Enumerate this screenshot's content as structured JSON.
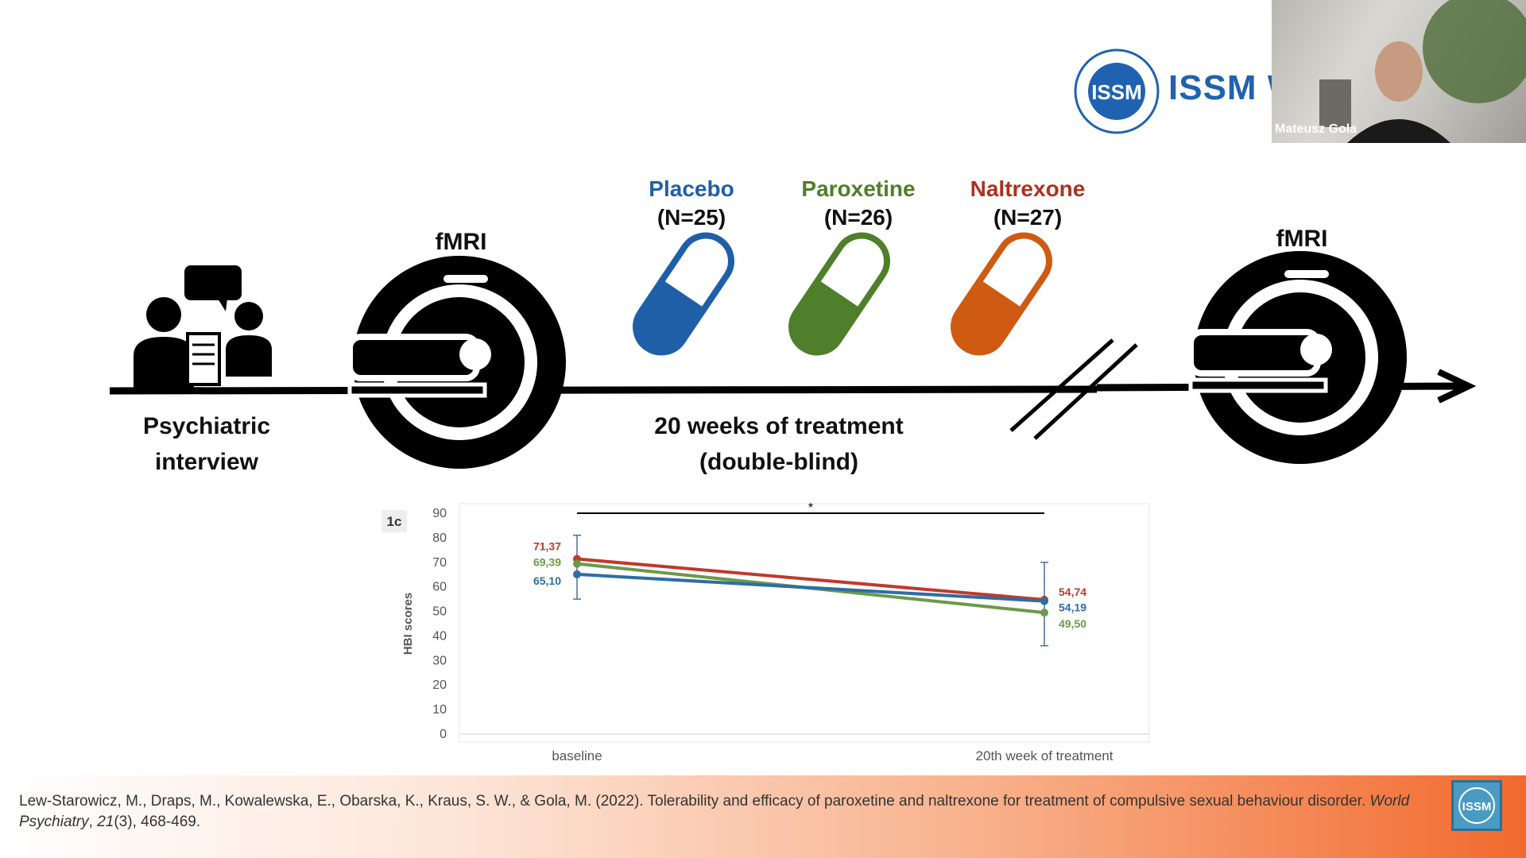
{
  "header": {
    "brand_text": "ISSM W"
  },
  "webcam": {
    "participant_name": "Mateusz Gola"
  },
  "timeline": {
    "interview_label_line1": "Psychiatric",
    "interview_label_line2": "interview",
    "fmri_left": "fMRI",
    "fmri_right": "fMRI",
    "treatment_line1": "20 weeks of treatment",
    "treatment_line2": "(double-blind)",
    "drugs": [
      {
        "name": "Placebo",
        "n": "(N=25)",
        "color": "#1f5fa8"
      },
      {
        "name": "Paroxetine",
        "n": "(N=26)",
        "color": "#4f7f2a"
      },
      {
        "name": "Naltrexone",
        "n": "(N=27)",
        "color": "#b0301e"
      }
    ]
  },
  "chart_data": {
    "type": "line",
    "panel_label": "1c",
    "ylabel": "HBI scores",
    "categories": [
      "baseline",
      "20th week of treatment"
    ],
    "ylim": [
      0,
      90
    ],
    "yticks": [
      "0",
      "10",
      "20",
      "30",
      "40",
      "50",
      "60",
      "70",
      "80",
      "90"
    ],
    "significance_marker": "*",
    "series": [
      {
        "color": "#c0392b",
        "values": [
          71.37,
          54.74
        ],
        "labels": [
          "71,37",
          "54,74"
        ]
      },
      {
        "color": "#6a9a4a",
        "values": [
          69.39,
          49.5
        ],
        "labels": [
          "69,39",
          "49,50"
        ]
      },
      {
        "color": "#2e6da4",
        "values": [
          65.1,
          54.19
        ],
        "labels": [
          "65,10",
          "54,19"
        ]
      }
    ],
    "grid": false
  },
  "footer": {
    "citation_main": "Lew-Starowicz, M., Draps, M., Kowalewska, E., Obarska, K., Kraus, S. W., & Gola, M. (2022). Tolerability and efficacy of paroxetine and naltrexone for treatment of compulsive sexual behaviour disorder. ",
    "journal": "World Psychiatry",
    "comma": ", ",
    "volume": "21",
    "issue_pages": "(3), 468-469."
  }
}
